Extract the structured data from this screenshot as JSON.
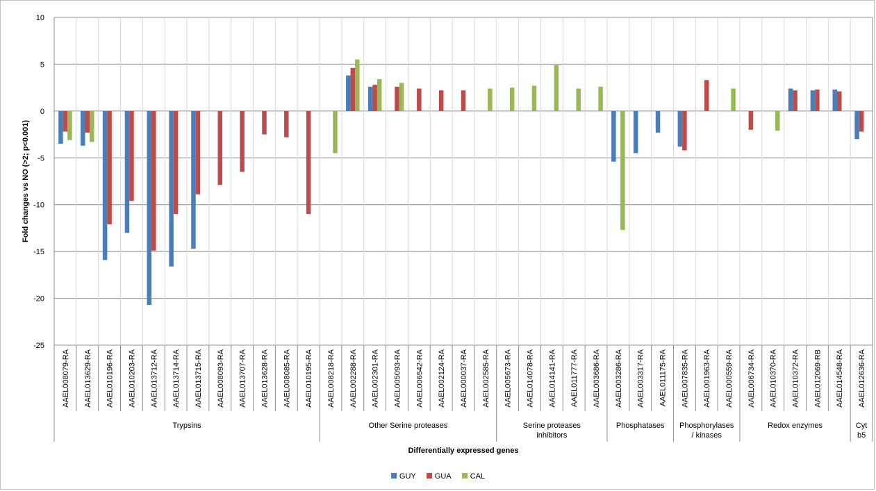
{
  "chart_data": {
    "type": "bar",
    "ylabel": "Fold changes vs NO (>2; p<0.001)",
    "xlabel": "Differentially expressed genes",
    "ylim": [
      -25,
      10
    ],
    "yticks": [
      10,
      5,
      0,
      -5,
      -10,
      -15,
      -20,
      -25
    ],
    "grid": "horizontal major lines, vertical category lines",
    "legend_position": "bottom",
    "categories": [
      "AAEL008079-RA",
      "AAEL013629-RA",
      "AAEL010196-RA",
      "AAEL010203-RA",
      "AAEL013712-RA",
      "AAEL013714-RA",
      "AAEL013715-RA",
      "AAEL008093-RA",
      "AAEL013707-RA",
      "AAEL013628-RA",
      "AAEL008085-RA",
      "AAEL010195-RA",
      "AAEL008218-RA",
      "AAEL002288-RA",
      "AAEL002301-RA",
      "AAEL005093-RA",
      "AAEL006542-RA",
      "AAEL002124-RA",
      "AAEL000037-RA",
      "AAEL002585-RA",
      "AAEL005673-RA",
      "AAEL014078-RA",
      "AAEL014141-RA",
      "AAEL011777-RA",
      "AAEL003686-RA",
      "AAEL003286-RA",
      "AAEL003317-RA",
      "AAEL011175-RA",
      "AAEL007835-RA",
      "AAEL001963-RA",
      "AAEL000559-RA",
      "AAEL006734-RA",
      "AAEL010370-RA",
      "AAEL010372-RA",
      "AAEL012069-RB",
      "AAEL014548-RA",
      "AAEL012636-RA"
    ],
    "groups": [
      {
        "label": "Trypsins",
        "count": 12
      },
      {
        "label": "Other Serine proteases",
        "count": 8
      },
      {
        "label": "Serine proteases inhibitors",
        "count": 5
      },
      {
        "label": "Phosphatases",
        "count": 3
      },
      {
        "label": "Phosphorylases / kinases",
        "count": 3
      },
      {
        "label": "Redox enzymes",
        "count": 5
      },
      {
        "label": "Cyt b5",
        "count": 1
      }
    ],
    "series": [
      {
        "name": "GUY",
        "color": "#4a7ebb",
        "values": [
          -3.5,
          -3.7,
          -15.9,
          -13,
          -20.7,
          -16.6,
          -14.7,
          null,
          null,
          null,
          null,
          null,
          null,
          3.8,
          2.6,
          null,
          null,
          null,
          null,
          null,
          null,
          null,
          null,
          null,
          null,
          -5.4,
          -4.5,
          -2.3,
          -3.8,
          null,
          null,
          null,
          null,
          2.4,
          2.2,
          2.3,
          -3
        ]
      },
      {
        "name": "GUA",
        "color": "#be4b48",
        "values": [
          -2.2,
          -2.3,
          -12.1,
          -9.6,
          -14.9,
          -11,
          -8.9,
          -7.9,
          -6.5,
          -2.5,
          -2.8,
          -11,
          null,
          4.6,
          2.8,
          2.6,
          2.4,
          2.2,
          2.2,
          null,
          null,
          null,
          null,
          null,
          null,
          null,
          null,
          null,
          -4.2,
          3.3,
          null,
          -2,
          null,
          2.2,
          2.3,
          2.1,
          -2.2
        ]
      },
      {
        "name": "CAL",
        "color": "#98b954",
        "values": [
          -3.1,
          -3.3,
          null,
          null,
          null,
          null,
          null,
          null,
          null,
          null,
          null,
          null,
          -4.5,
          5.5,
          3.4,
          3,
          null,
          null,
          null,
          2.4,
          2.5,
          2.7,
          4.9,
          2.4,
          2.6,
          -12.7,
          null,
          null,
          null,
          null,
          2.4,
          null,
          -2.1,
          null,
          null,
          null,
          null
        ]
      }
    ]
  }
}
